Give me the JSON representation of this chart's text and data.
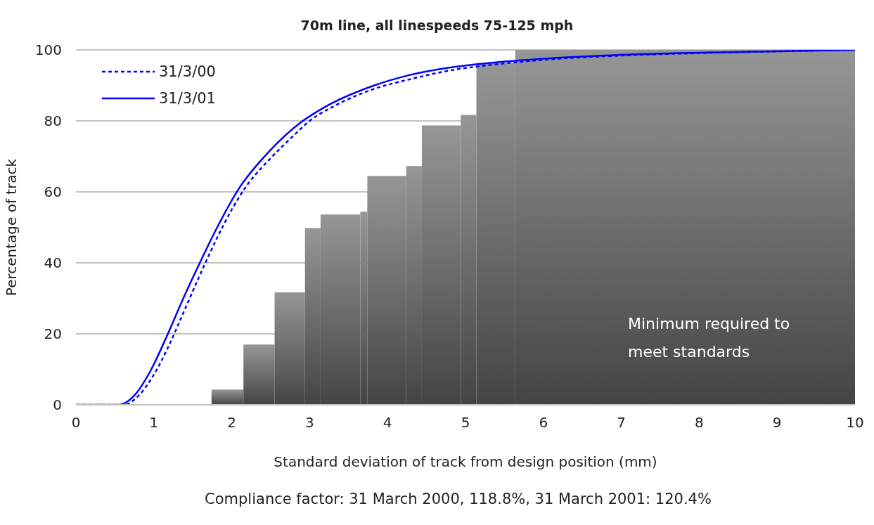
{
  "chart_data": {
    "type": "line",
    "title": "70m line, all linespeeds 75-125 mph",
    "xlabel": "Standard deviation of track from design position (mm)",
    "ylabel": "Percentage of track",
    "xlim": [
      0,
      10
    ],
    "xticks": [
      0,
      1,
      2,
      3,
      4,
      5,
      6,
      7,
      8,
      9,
      10
    ],
    "ylim": [
      0,
      100
    ],
    "yticks": [
      0,
      20,
      40,
      60,
      80,
      100
    ],
    "grid": "y",
    "legend": "top left",
    "marker": "none",
    "series": [
      {
        "type": "histogram",
        "color": "#969696",
        "bins": [
          1.74,
          2.15,
          2.55,
          2.94,
          3.14,
          3.65,
          3.74,
          4.24,
          4.44,
          4.94,
          5.14,
          5.64,
          10
        ],
        "values": [
          4.3,
          17,
          31.7,
          49.8,
          53.6,
          54.4,
          64.5,
          67.3,
          78.7,
          81.7,
          96.3,
          100
        ]
      },
      {
        "name": "31/3/00",
        "color": "#0000ff",
        "line_style": "dashed",
        "x": [
          0,
          0.62,
          0.8,
          1.0,
          1.2,
          1.4,
          1.6,
          1.8,
          2.0,
          2.2,
          2.5,
          2.8,
          3.0,
          3.3,
          3.8,
          4.3,
          4.8,
          5.34,
          6,
          7,
          8,
          9,
          10
        ],
        "values": [
          0,
          0,
          2.5,
          8.5,
          17,
          27,
          37,
          46.5,
          55,
          62,
          69.5,
          76,
          80,
          84,
          88.8,
          91.8,
          94.2,
          95.8,
          97.2,
          98.4,
          99.1,
          99.6,
          100
        ]
      },
      {
        "name": "31/3/01",
        "color": "#0000ff",
        "line_style": "solid",
        "x": [
          0,
          0.55,
          0.76,
          0.96,
          1.17,
          1.38,
          1.59,
          1.79,
          2.1,
          2.48,
          2.9,
          3.17,
          3.83,
          4.28,
          4.76,
          5.34,
          6,
          7,
          8,
          9,
          10
        ],
        "values": [
          0,
          0,
          2.9,
          9.7,
          19.5,
          30.1,
          40,
          49,
          61.2,
          71.4,
          79.8,
          83.6,
          90,
          92.9,
          94.9,
          96.4,
          97.5,
          98.6,
          99.2,
          99.6,
          100
        ]
      }
    ],
    "annotations": [
      "Minimum required to meet standards",
      "Compliance factor:  31 March 2000, 118.8%,  31 March 2001: 120.4%"
    ]
  }
}
